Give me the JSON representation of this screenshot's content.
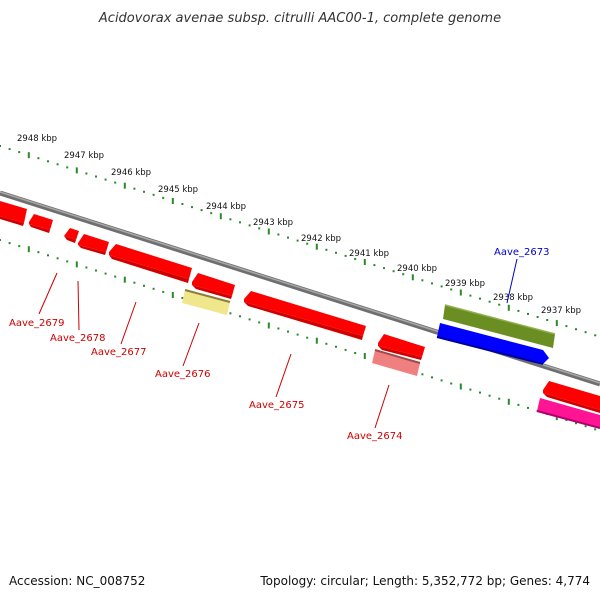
{
  "title": "Acidovorax avenae subsp. citrulli AAC00-1, complete genome",
  "footer": {
    "accession": "Accession: NC_008752",
    "summary": "Topology: circular; Length: 5,352,772 bp; Genes: 4,774"
  },
  "colors": {
    "backbone": "#888888",
    "ticks": "#2a8a2a",
    "forward_gene": "#ff0000",
    "reverse_gene": "#ff0000",
    "label_forward": "#0000cc",
    "label_reverse": "#cc0000",
    "olive_feature": "#6b8e23",
    "blue_feature": "#0000ff",
    "pale_yellow_feature": "#f0e68c",
    "pink_feature": "#f08080",
    "magenta_feature": "#ff1493"
  },
  "scale": {
    "unit": "kbp",
    "labels": [
      "2948 kbp",
      "2947 kbp",
      "2946 kbp",
      "2945 kbp",
      "2944 kbp",
      "2943 kbp",
      "2942 kbp",
      "2941 kbp",
      "2940 kbp",
      "2939 kbp",
      "2938 kbp",
      "2937 kbp"
    ]
  },
  "genes": [
    {
      "name": "Aave_2679",
      "strand": "reverse"
    },
    {
      "name": "Aave_2678",
      "strand": "reverse"
    },
    {
      "name": "Aave_2677",
      "strand": "reverse"
    },
    {
      "name": "Aave_2676",
      "strand": "reverse"
    },
    {
      "name": "Aave_2675",
      "strand": "reverse"
    },
    {
      "name": "Aave_2674",
      "strand": "reverse"
    },
    {
      "name": "Aave_2673",
      "strand": "forward"
    }
  ]
}
